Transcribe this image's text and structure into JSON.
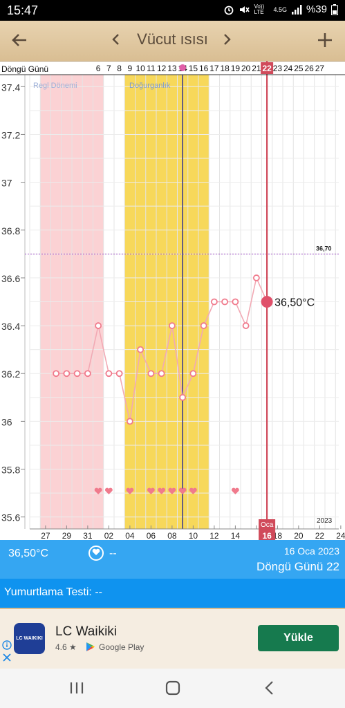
{
  "status": {
    "time": "15:47",
    "alarm_icon": "alarm-icon",
    "mute_icon": "mute-icon",
    "volte": "Vo)) LTE",
    "network": "4.5G",
    "battery": "%39"
  },
  "header": {
    "title": "Vücut ısısı",
    "back_icon": "arrow-left-icon",
    "prev_icon": "chevron-left-icon",
    "next_icon": "chevron-right-icon",
    "add_icon": "plus-icon"
  },
  "chart_data": {
    "type": "line",
    "cycle_label": "Döngü Günü",
    "cycle_days": [
      "6",
      "7",
      "8",
      "9",
      "10",
      "11",
      "12",
      "13",
      "14",
      "15",
      "16",
      "17",
      "18",
      "19",
      "20",
      "21",
      "22",
      "23",
      "24",
      "25",
      "26",
      "27"
    ],
    "current_cycle_day": "22",
    "date_ticks": [
      "27",
      "29",
      "31",
      "02",
      "04",
      "06",
      "08",
      "10",
      "12",
      "14",
      "16",
      "18",
      "20",
      "22",
      "24"
    ],
    "month_label": "Oca",
    "current_date_tick": "16",
    "year_label": "2023",
    "y_ticks": [
      "37.4",
      "37.2",
      "37",
      "36.8",
      "36.6",
      "36.4",
      "36.2",
      "36",
      "35.8",
      "35.6"
    ],
    "ylim": [
      35.55,
      37.45
    ],
    "period_label": "Regl Dönemi",
    "fertile_label": "Doğurganlık",
    "coverline_label": "36,70",
    "coverline_value": 36.7,
    "period_range": [
      1,
      6
    ],
    "fertile_range": [
      9,
      16
    ],
    "ovulation_day": 14,
    "current_day_index": 22,
    "series": [
      {
        "values": [
          [
            2,
            36.2
          ],
          [
            3,
            36.2
          ],
          [
            4,
            36.2
          ],
          [
            5,
            36.2
          ],
          [
            6,
            36.4
          ],
          [
            7,
            36.2
          ],
          [
            8,
            36.2
          ],
          [
            9,
            36.0
          ],
          [
            10,
            36.3
          ],
          [
            11,
            36.2
          ],
          [
            12,
            36.2
          ],
          [
            13,
            36.4
          ],
          [
            14,
            36.1
          ],
          [
            15,
            36.2
          ],
          [
            16,
            36.4
          ],
          [
            17,
            36.5
          ],
          [
            18,
            36.5
          ],
          [
            19,
            36.5
          ],
          [
            20,
            36.4
          ],
          [
            21,
            36.6
          ],
          [
            22,
            36.5
          ]
        ]
      }
    ],
    "current_value_label": "36,50°C",
    "intercourse_days": [
      6,
      7,
      9,
      11,
      12,
      13,
      14,
      15,
      19
    ]
  },
  "info": {
    "temperature": "36,50°C",
    "heart_value": "--",
    "date": "16 Oca 2023",
    "cycle_day": "Döngü Günü 22"
  },
  "test": {
    "label": "Yumurtlama Testi: --"
  },
  "ad": {
    "brand": "LC WAIKIKI",
    "title": "LC Waikiki",
    "rating": "4.6 ★",
    "store": "Google Play",
    "button": "Yükle",
    "info_icon": "info-icon",
    "close_icon": "close-icon"
  },
  "nav": {
    "recents": "recents-icon",
    "home": "home-icon",
    "back": "back-icon"
  }
}
